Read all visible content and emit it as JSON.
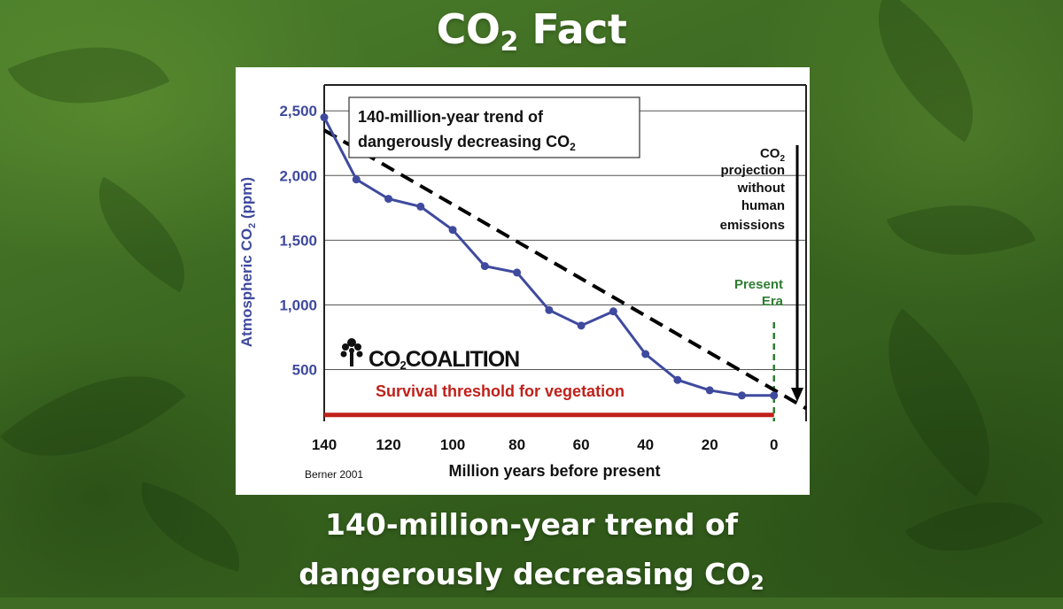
{
  "header": {
    "title_main": "CO",
    "title_sub": "2",
    "title_rest": "Fact"
  },
  "footer": {
    "line1": "140-million-year trend of",
    "line2_main": "dangerously decreasing CO",
    "line2_sub": "2"
  },
  "colors": {
    "series": "#3f4a9e",
    "trend": "#000000",
    "threshold": "#c0201a",
    "present": "#2e7d32",
    "axis_label": "#3f4a9e"
  },
  "chart_data": {
    "type": "line",
    "title_line1": "140-million-year trend of",
    "title_line2_main": "dangerously decreasing CO",
    "title_line2_sub": "2",
    "xlabel": "Million years before present",
    "ylabel_main": "Atmospheric CO",
    "ylabel_sub": "2",
    "ylabel_rest": " (ppm)",
    "x_reversed": true,
    "xlim": [
      140,
      -10
    ],
    "ylim": [
      100,
      2700
    ],
    "grid": true,
    "x_ticks": [
      "140",
      "120",
      "100",
      "80",
      "60",
      "40",
      "20",
      "0"
    ],
    "y_ticks": [
      "2,500",
      "2,000",
      "1,500",
      "1,000",
      "500"
    ],
    "y_tick_values": [
      2500,
      2000,
      1500,
      1000,
      500
    ],
    "x_tick_values": [
      140,
      120,
      100,
      80,
      60,
      40,
      20,
      0
    ],
    "series": [
      {
        "x": [
          140,
          130,
          120,
          110,
          100,
          90,
          80,
          70,
          60,
          50,
          40,
          30,
          20,
          10,
          0
        ],
        "y": [
          2450,
          1970,
          1820,
          1760,
          1580,
          1300,
          1250,
          960,
          840,
          950,
          620,
          420,
          340,
          300,
          300
        ]
      }
    ],
    "trend_line": {
      "x": [
        140,
        -10
      ],
      "y": [
        2350,
        200
      ]
    },
    "threshold": {
      "y": 150,
      "label": "Survival threshold for vegetation"
    },
    "present_marker": {
      "x": 0,
      "label_line1": "Present",
      "label_line2": "Era"
    },
    "projection_label": {
      "line1_main": "CO",
      "line1_sub": "2",
      "line2": "projection",
      "line3": "without",
      "line4": "human",
      "line5": "emissions"
    },
    "logo_text_a": "CO",
    "logo_text_sub": "2",
    "logo_text_b": "COALITION",
    "source": "Berner 2001"
  }
}
